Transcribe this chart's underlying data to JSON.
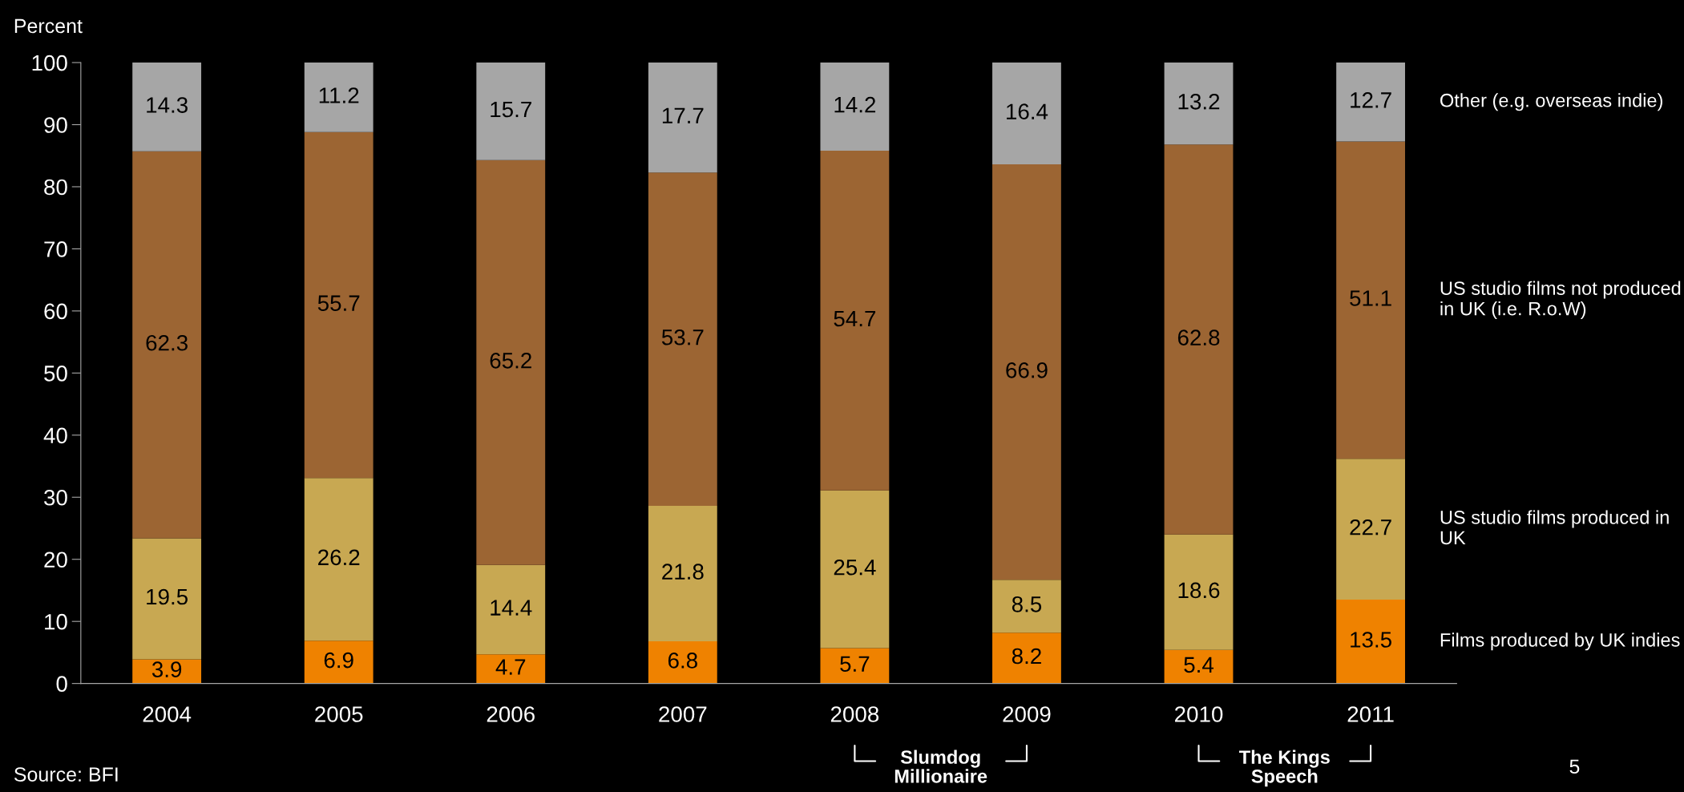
{
  "chart_data": {
    "type": "bar",
    "ylabel": "Percent",
    "stacked": true,
    "data_labels": true,
    "categories": [
      "2004",
      "2005",
      "2006",
      "2007",
      "2008",
      "2009",
      "2010",
      "2011"
    ],
    "series": [
      {
        "name": "Films produced by UK indies",
        "color": "#ef8200",
        "values": [
          3.9,
          6.9,
          4.7,
          6.8,
          5.7,
          8.2,
          5.4,
          13.5
        ]
      },
      {
        "name": "US studio films produced in UK",
        "color": "#c8a852",
        "values": [
          19.5,
          26.2,
          14.4,
          21.8,
          25.4,
          8.5,
          18.6,
          22.7
        ]
      },
      {
        "name": "US studio films not produced in UK (i.e. R.o.W)",
        "color": "#9c6533",
        "values": [
          62.3,
          55.7,
          65.2,
          53.7,
          54.7,
          66.9,
          62.8,
          51.1
        ]
      },
      {
        "name": "Other (e.g. overseas indie)",
        "color": "#a6a6a6",
        "values": [
          14.3,
          11.2,
          15.7,
          17.7,
          14.2,
          16.4,
          13.2,
          12.7
        ]
      }
    ],
    "ylim": [
      0,
      100
    ],
    "yticks": [
      0,
      10,
      20,
      30,
      40,
      50,
      60,
      70,
      80,
      90,
      100
    ],
    "grid": false,
    "legend": false,
    "annotations": [
      "Source: BFI",
      "Slumdog Millionaire",
      "The Kings Speech",
      "5"
    ]
  }
}
